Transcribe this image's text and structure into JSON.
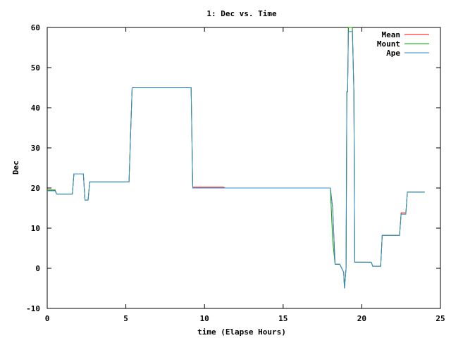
{
  "chart_data": {
    "type": "line",
    "title": "1: Dec vs. Time",
    "xlabel": "time (Elapse Hours)",
    "ylabel": "Dec",
    "xlim": [
      0,
      25
    ],
    "ylim": [
      -10,
      60
    ],
    "xticks": [
      0,
      5,
      10,
      15,
      20,
      25
    ],
    "yticks": [
      -10,
      0,
      10,
      20,
      30,
      40,
      50,
      60
    ],
    "grid": false,
    "legend_position": "top-right",
    "series": [
      {
        "name": "Mean",
        "color": "#ff0000",
        "x": [
          0,
          0.5,
          0.6,
          1.6,
          1.7,
          2.3,
          2.4,
          2.6,
          2.7,
          5.2,
          5.4,
          9.15,
          9.25,
          11.2,
          11.3,
          18.0,
          18.15,
          18.3,
          18.6,
          18.85,
          18.9,
          19.0,
          19.05,
          19.1,
          19.15,
          19.4,
          19.5,
          19.55,
          20.0,
          20.6,
          20.7,
          21.2,
          21.3,
          21.7,
          21.8,
          22.4,
          22.5,
          22.8,
          22.9,
          24.0
        ],
        "y": [
          19.5,
          19.5,
          18.5,
          18.5,
          23.5,
          23.5,
          17,
          17,
          21.5,
          21.5,
          45,
          45,
          20.2,
          20.2,
          20,
          20,
          15,
          1,
          1,
          -1,
          -5,
          0,
          44,
          44,
          60,
          60,
          44,
          1.5,
          1.5,
          1.5,
          0.5,
          0.5,
          8.2,
          8.2,
          8.2,
          8.2,
          13.8,
          13.8,
          19,
          19
        ]
      },
      {
        "name": "Mount",
        "color": "#00a000",
        "x": [
          0,
          0.5,
          0.6,
          1.6,
          1.7,
          2.3,
          2.4,
          2.6,
          2.7,
          5.2,
          5.4,
          9.15,
          9.25,
          11.2,
          11.3,
          18.0,
          18.15,
          18.3,
          18.6,
          18.85,
          18.9,
          19.0,
          19.05,
          19.1,
          19.15,
          19.4,
          19.5,
          19.55,
          20.0,
          20.6,
          20.7,
          21.2,
          21.3,
          21.7,
          21.8,
          22.4,
          22.5,
          22.8,
          22.9,
          24.0
        ],
        "y": [
          19.5,
          19.5,
          18.5,
          18.5,
          23.5,
          23.5,
          17,
          17,
          21.5,
          21.5,
          45,
          45,
          20,
          20,
          20,
          20,
          7,
          1,
          1,
          -1,
          -5,
          0,
          44,
          44,
          60,
          60,
          44,
          1.5,
          1.5,
          1.5,
          0.5,
          0.5,
          8.2,
          8.2,
          8.2,
          8.2,
          13.5,
          13.5,
          19,
          19
        ]
      },
      {
        "name": "Ape",
        "color": "#3090d0",
        "x": [
          0,
          0.5,
          0.6,
          1.6,
          1.7,
          2.3,
          2.4,
          2.6,
          2.7,
          5.2,
          5.4,
          9.15,
          9.25,
          11.2,
          11.3,
          18.0,
          18.15,
          18.3,
          18.6,
          18.85,
          18.9,
          19.0,
          19.05,
          19.1,
          19.15,
          19.4,
          19.5,
          19.55,
          20.0,
          20.6,
          20.7,
          21.2,
          21.3,
          21.7,
          21.8,
          22.4,
          22.5,
          22.8,
          22.9,
          24.0
        ],
        "y": [
          19.3,
          19.3,
          18.5,
          18.5,
          23.5,
          23.5,
          17,
          17,
          21.5,
          21.5,
          45,
          45,
          20,
          20,
          20,
          20,
          15,
          1,
          1,
          -1,
          -5,
          0,
          44,
          44,
          59,
          59,
          44,
          1.5,
          1.5,
          1.5,
          0.5,
          0.5,
          8.2,
          8.2,
          8.2,
          8.2,
          13.5,
          13.5,
          19,
          19
        ]
      }
    ]
  }
}
